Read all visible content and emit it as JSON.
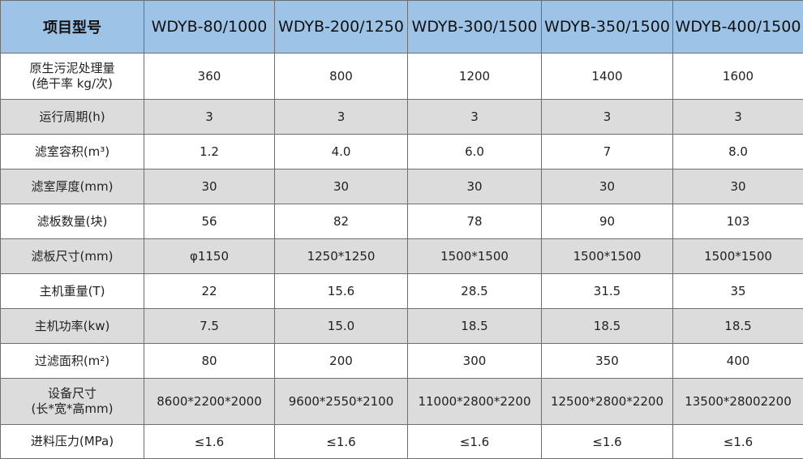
{
  "table": {
    "corner_label": "项目型号",
    "models": [
      "WDYB-80/1000",
      "WDYB-200/1250",
      "WDYB-300/1500",
      "WDYB-350/1500",
      "WDYB-400/1500"
    ],
    "rows": [
      {
        "label_line1": "原生污泥处理量",
        "label_line2": "(绝干率 kg/次)",
        "values": [
          "360",
          "800",
          "1200",
          "1400",
          "1600"
        ]
      },
      {
        "label_line1": "运行周期(h)",
        "label_line2": "",
        "values": [
          "3",
          "3",
          "3",
          "3",
          "3"
        ]
      },
      {
        "label_line1": "滤室容积(m³)",
        "label_line2": "",
        "values": [
          "1.2",
          "4.0",
          "6.0",
          "7",
          "8.0"
        ]
      },
      {
        "label_line1": "滤室厚度(mm)",
        "label_line2": "",
        "values": [
          "30",
          "30",
          "30",
          "30",
          "30"
        ]
      },
      {
        "label_line1": "滤板数量(块)",
        "label_line2": "",
        "values": [
          "56",
          "82",
          "78",
          "90",
          "103"
        ]
      },
      {
        "label_line1": "滤板尺寸(mm)",
        "label_line2": "",
        "values": [
          "φ1150",
          "1250*1250",
          "1500*1500",
          "1500*1500",
          "1500*1500"
        ]
      },
      {
        "label_line1": "主机重量(T)",
        "label_line2": "",
        "values": [
          "22",
          "15.6",
          "28.5",
          "31.5",
          "35"
        ]
      },
      {
        "label_line1": "主机功率(kw)",
        "label_line2": "",
        "values": [
          "7.5",
          "15.0",
          "18.5",
          "18.5",
          "18.5"
        ]
      },
      {
        "label_line1": "过滤面积(m²)",
        "label_line2": "",
        "values": [
          "80",
          "200",
          "300",
          "350",
          "400"
        ]
      },
      {
        "label_line1": "设备尺寸",
        "label_line2": "(长*宽*高mm)",
        "values": [
          "8600*2200*2000",
          "9600*2550*2100",
          "11000*2800*2200",
          "12500*2800*2200",
          "13500*28002200"
        ]
      },
      {
        "label_line1": "进料压力(MPa)",
        "label_line2": "",
        "values": [
          "≤1.6",
          "≤1.6",
          "≤1.6",
          "≤1.6",
          "≤1.6"
        ]
      }
    ]
  },
  "colors": {
    "header_bg": "#9dc3e6",
    "row_alt_bg": "#dcdcdc",
    "border": "#6f6f6f"
  }
}
